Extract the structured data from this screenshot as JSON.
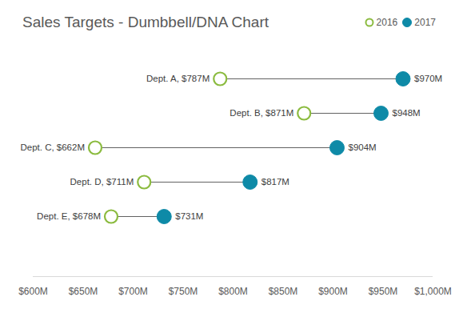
{
  "chart_data": {
    "type": "dumbbell",
    "title": "Sales Targets - Dumbbell/DNA Chart",
    "categories": [
      "Dept. A",
      "Dept. B",
      "Dept. C",
      "Dept. D",
      "Dept. E"
    ],
    "series": [
      {
        "name": "2016",
        "color": "#8bbb3f",
        "marker": "circle_open",
        "values": [
          787,
          871,
          662,
          711,
          678
        ],
        "value_labels": [
          "Dept. A, $787M",
          "Dept. B, $871M",
          "Dept. C, $662M",
          "Dept. D, $711M",
          "Dept. E, $678M"
        ]
      },
      {
        "name": "2017",
        "color": "#0e8aa7",
        "marker": "circle",
        "values": [
          970,
          948,
          904,
          817,
          731
        ],
        "value_labels": [
          "$970M",
          "$948M",
          "$904M",
          "$817M",
          "$731M"
        ]
      }
    ],
    "xlim": [
      600,
      1000
    ],
    "xticks": [
      {
        "value": 600,
        "label": "$600M"
      },
      {
        "value": 650,
        "label": "$650M"
      },
      {
        "value": 700,
        "label": "$700M"
      },
      {
        "value": 750,
        "label": "$750M"
      },
      {
        "value": 800,
        "label": "$800M"
      },
      {
        "value": 850,
        "label": "$850M"
      },
      {
        "value": 900,
        "label": "$900M"
      },
      {
        "value": 950,
        "label": "$950M"
      },
      {
        "value": 1000,
        "label": "$1,000M"
      }
    ],
    "orientation": "horizontal",
    "data_labels": true,
    "tick_labels": "x",
    "grid": false,
    "legend": "top-right"
  }
}
